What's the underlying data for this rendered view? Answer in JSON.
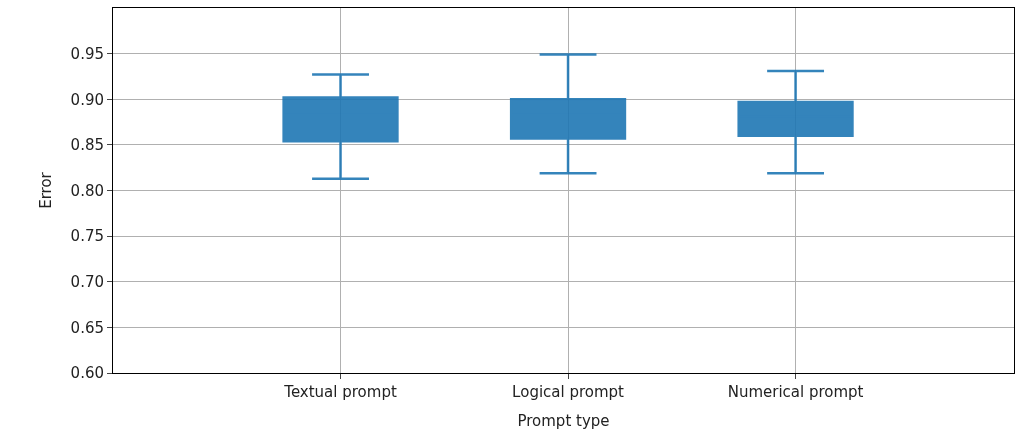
{
  "chart_data": {
    "type": "box",
    "xlabel": "Prompt type",
    "ylabel": "Error",
    "categories": [
      "Textual prompt",
      "Logical prompt",
      "Numerical prompt"
    ],
    "color": "#1f77b4",
    "boxes": [
      {
        "low": 0.813,
        "q1": 0.854,
        "median": 0.883,
        "q3": 0.902,
        "high": 0.927
      },
      {
        "low": 0.819,
        "q1": 0.857,
        "median": 0.883,
        "q3": 0.9,
        "high": 0.949
      },
      {
        "low": 0.819,
        "q1": 0.86,
        "median": 0.881,
        "q3": 0.897,
        "high": 0.931
      }
    ],
    "ylim": [
      0.6,
      1.0
    ],
    "yticks": [
      {
        "value": 0.6,
        "label": "0.60"
      },
      0.65,
      {
        "value": 0.7,
        "label": "0.70"
      },
      0.75,
      {
        "value": 0.8,
        "label": "0.80"
      },
      0.85,
      {
        "value": 0.9,
        "label": "0.90"
      },
      0.95
    ],
    "grid": true
  }
}
